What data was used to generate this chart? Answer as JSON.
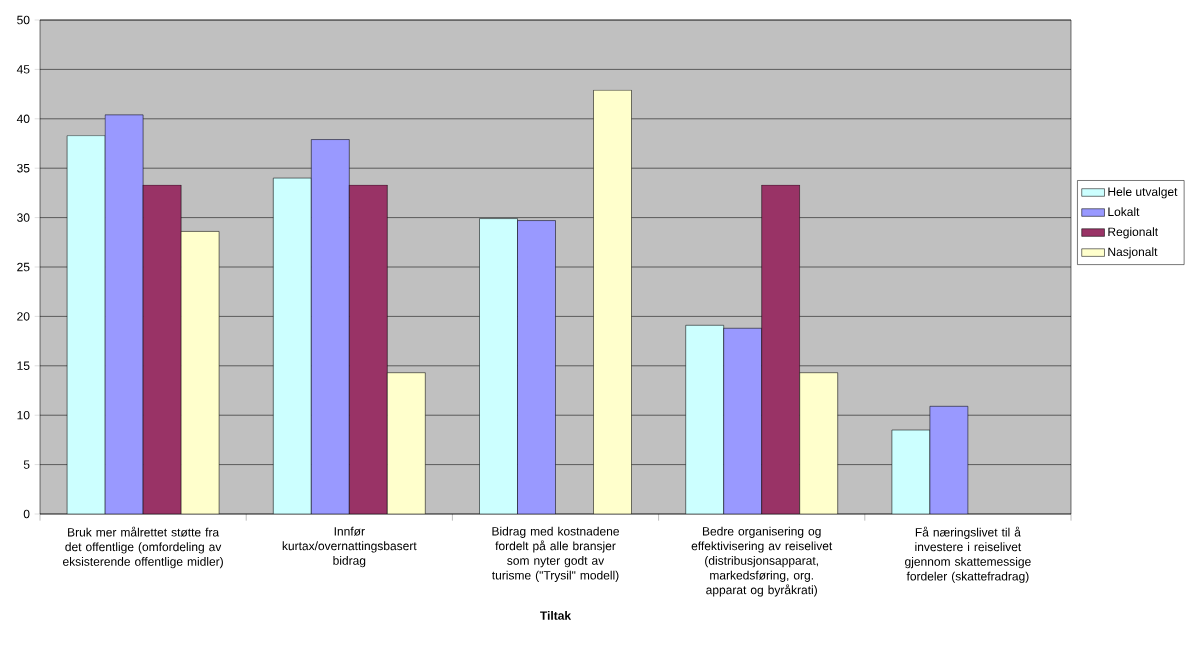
{
  "chart_data": {
    "type": "bar",
    "xlabel": "Tiltak",
    "categories": [
      "Bruk mer målrettet støtte fra det offentlige (omfordeling av eksisterende offentlige midler)",
      "Innfør kurtax/overnattingsbasert bidrag",
      "Bidrag med kostnadene fordelt på alle bransjer som nyter godt av turisme (\"Trysil\" modell)",
      "Bedre organisering og effektivisering av reiselivet (distribusjonsapparat, markedsføring, org. apparat og byråkrati)",
      "Få næringslivet til å investere i reiselivet gjennom skattemessige fordeler (skattefradrag)"
    ],
    "series": [
      {
        "name": "Hele utvalget",
        "color": "#ccffff",
        "values": [
          38.3,
          34.0,
          29.9,
          19.1,
          8.5
        ]
      },
      {
        "name": "Lokalt",
        "color": "#9999ff",
        "values": [
          40.4,
          37.9,
          29.7,
          18.8,
          10.9
        ]
      },
      {
        "name": "Regionalt",
        "color": "#993366",
        "values": [
          33.3,
          33.3,
          null,
          33.3,
          null
        ]
      },
      {
        "name": "Nasjonalt",
        "color": "#ffffcc",
        "values": [
          28.6,
          14.3,
          42.9,
          14.3,
          null
        ]
      }
    ],
    "ylim": [
      0,
      50
    ],
    "yticks": [
      0,
      5,
      10,
      15,
      20,
      25,
      30,
      35,
      40,
      45,
      50
    ],
    "grid": "y",
    "legend": "right"
  }
}
